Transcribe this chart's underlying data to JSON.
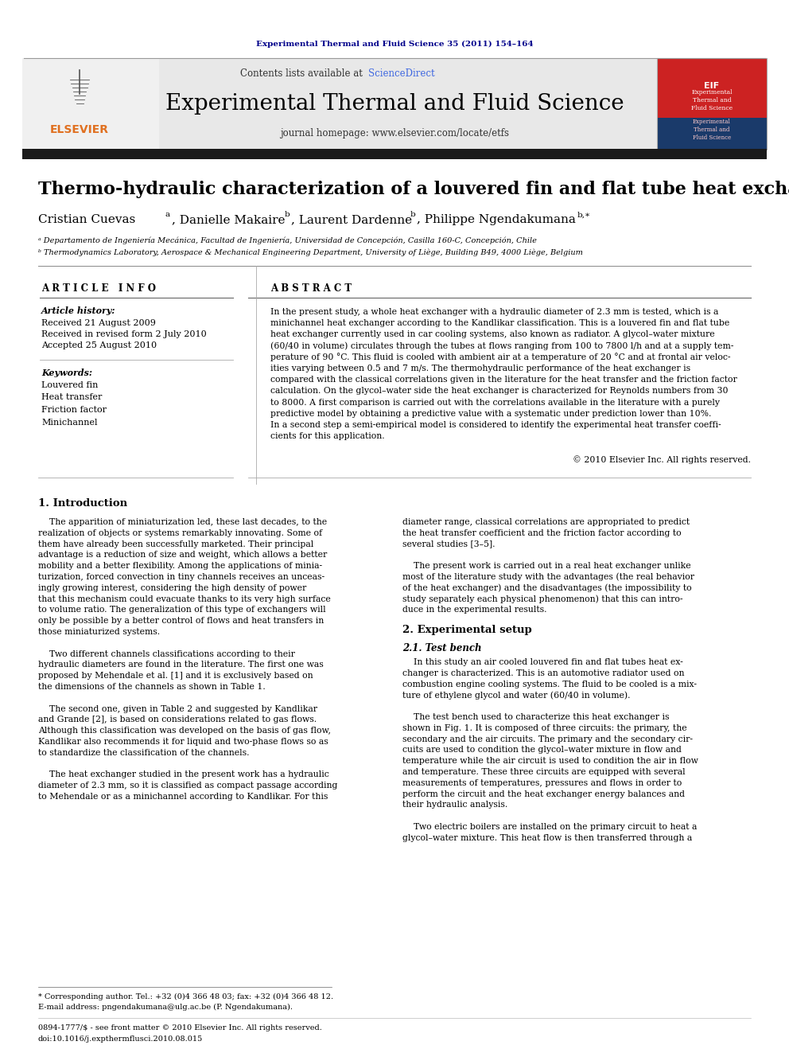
{
  "page_title": "Experimental Thermal and Fluid Science 35 (2011) 154–164",
  "journal_name": "Experimental Thermal and Fluid Science",
  "journal_url": "journal homepage: www.elsevier.com/locate/etfs",
  "contents_line": "Contents lists available at ",
  "sciencedirect": "ScienceDirect",
  "paper_title": "Thermo-hydraulic characterization of a louvered fin and flat tube heat exchanger",
  "affil_a": "ᵃ Departamento de Ingeniería Mecánica, Facultad de Ingeniería, Universidad de Concepción, Casilla 160-C, Concepción, Chile",
  "affil_b": "ᵇ Thermodynamics Laboratory, Aerospace & Mechanical Engineering Department, University of Liège, Building B49, 4000 Liège, Belgium",
  "article_info_title": "A R T I C L E   I N F O",
  "article_history_label": "Article history:",
  "received": "Received 21 August 2009",
  "received_revised": "Received in revised form 2 July 2010",
  "accepted": "Accepted 25 August 2010",
  "keywords_label": "Keywords:",
  "keywords": [
    "Louvered fin",
    "Heat transfer",
    "Friction factor",
    "Minichannel"
  ],
  "abstract_title": "A B S T R A C T",
  "copyright": "© 2010 Elsevier Inc. All rights reserved.",
  "section1_title": "1. Introduction",
  "section2_title": "2. Experimental setup",
  "section21_title": "2.1. Test bench",
  "footnote_star": "* Corresponding author. Tel.: +32 (0)4 366 48 03; fax: +32 (0)4 366 48 12.",
  "footnote_email": "E-mail address: pngendakumana@ulg.ac.be (P. Ngendakumana).",
  "issn_line": "0894-1777/$ - see front matter © 2010 Elsevier Inc. All rights reserved.",
  "doi_line": "doi:10.1016/j.expthermflusci.2010.08.015",
  "bg_color": "#ffffff",
  "header_bg": "#e8e8e8",
  "dark_bar_color": "#1a1a1a",
  "blue_title_color": "#00008B",
  "link_color": "#4169E1",
  "elsevier_orange": "#E07020",
  "text_color": "#000000",
  "abstract_lines": [
    "In the present study, a whole heat exchanger with a hydraulic diameter of 2.3 mm is tested, which is a",
    "minichannel heat exchanger according to the Kandlikar classification. This is a louvered fin and flat tube",
    "heat exchanger currently used in car cooling systems, also known as radiator. A glycol–water mixture",
    "(60/40 in volume) circulates through the tubes at flows ranging from 100 to 7800 l/h and at a supply tem-",
    "perature of 90 °C. This fluid is cooled with ambient air at a temperature of 20 °C and at frontal air veloc-",
    "ities varying between 0.5 and 7 m/s. The thermohydraulic performance of the heat exchanger is",
    "compared with the classical correlations given in the literature for the heat transfer and the friction factor",
    "calculation. On the glycol–water side the heat exchanger is characterized for Reynolds numbers from 30",
    "to 8000. A first comparison is carried out with the correlations available in the literature with a purely",
    "predictive model by obtaining a predictive value with a systematic under prediction lower than 10%.",
    "In a second step a semi-empirical model is considered to identify the experimental heat transfer coeffi-",
    "cients for this application."
  ],
  "intro_left_lines": [
    "    The apparition of miniaturization led, these last decades, to the",
    "realization of objects or systems remarkably innovating. Some of",
    "them have already been successfully marketed. Their principal",
    "advantage is a reduction of size and weight, which allows a better",
    "mobility and a better flexibility. Among the applications of minia-",
    "turization, forced convection in tiny channels receives an unceas-",
    "ingly growing interest, considering the high density of power",
    "that this mechanism could evacuate thanks to its very high surface",
    "to volume ratio. The generalization of this type of exchangers will",
    "only be possible by a better control of flows and heat transfers in",
    "those miniaturized systems.",
    "",
    "    Two different channels classifications according to their",
    "hydraulic diameters are found in the literature. The first one was",
    "proposed by Mehendale et al. [1] and it is exclusively based on",
    "the dimensions of the channels as shown in Table 1.",
    "",
    "    The second one, given in Table 2 and suggested by Kandlikar",
    "and Grande [2], is based on considerations related to gas flows.",
    "Although this classification was developed on the basis of gas flow,",
    "Kandlikar also recommends it for liquid and two-phase flows so as",
    "to standardize the classification of the channels.",
    "",
    "    The heat exchanger studied in the present work has a hydraulic",
    "diameter of 2.3 mm, so it is classified as compact passage according",
    "to Mehendale or as a minichannel according to Kandlikar. For this"
  ],
  "intro_right_lines": [
    "diameter range, classical correlations are appropriated to predict",
    "the heat transfer coefficient and the friction factor according to",
    "several studies [3–5].",
    "",
    "    The present work is carried out in a real heat exchanger unlike",
    "most of the literature study with the advantages (the real behavior",
    "of the heat exchanger) and the disadvantages (the impossibility to",
    "study separately each physical phenomenon) that this can intro-",
    "duce in the experimental results."
  ],
  "sec2_right_lines": [
    "    In this study an air cooled louvered fin and flat tubes heat ex-",
    "changer is characterized. This is an automotive radiator used on",
    "combustion engine cooling systems. The fluid to be cooled is a mix-",
    "ture of ethylene glycol and water (60/40 in volume).",
    "",
    "    The test bench used to characterize this heat exchanger is",
    "shown in Fig. 1. It is composed of three circuits: the primary, the",
    "secondary and the air circuits. The primary and the secondary cir-",
    "cuits are used to condition the glycol–water mixture in flow and",
    "temperature while the air circuit is used to condition the air in flow",
    "and temperature. These three circuits are equipped with several",
    "measurements of temperatures, pressures and flows in order to",
    "perform the circuit and the heat exchanger energy balances and",
    "their hydraulic analysis.",
    "",
    "    Two electric boilers are installed on the primary circuit to heat a",
    "glycol–water mixture. This heat flow is then transferred through a"
  ]
}
